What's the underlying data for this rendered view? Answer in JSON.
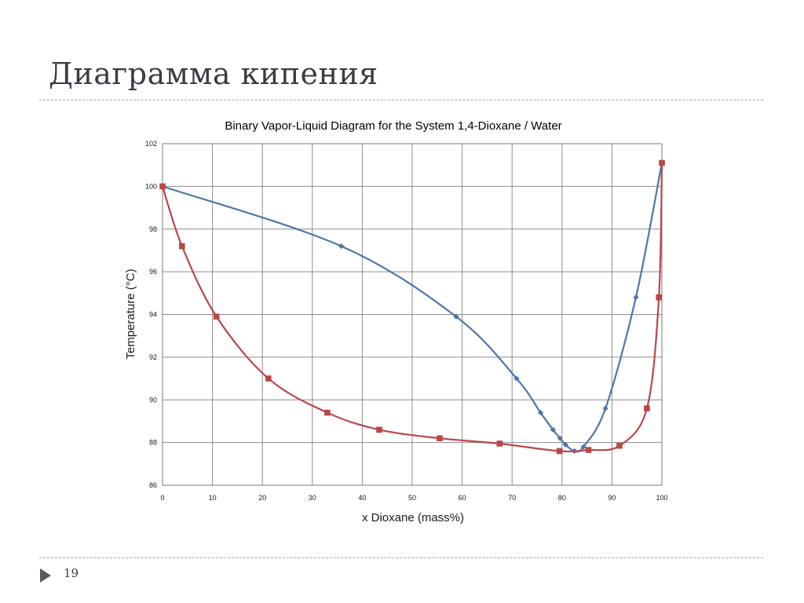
{
  "slide": {
    "title": "Диаграмма кипения",
    "page_number": "19"
  },
  "chart_data": {
    "type": "line",
    "title": "Binary Vapor-Liquid Diagram for the System 1,4-Dioxane / Water",
    "xlabel": "x Dioxane (mass%)",
    "ylabel": "Temperature (°C)",
    "xlim": [
      0,
      100
    ],
    "ylim": [
      86,
      102
    ],
    "x_ticks": [
      0,
      10,
      20,
      30,
      40,
      50,
      60,
      70,
      80,
      90,
      100
    ],
    "y_ticks": [
      86,
      88,
      90,
      92,
      94,
      96,
      98,
      100,
      102
    ],
    "grid": true,
    "legend": "none",
    "series": [
      {
        "marker": "diamond",
        "color": "#4f76a7",
        "points": [
          [
            0,
            100.0
          ],
          [
            35.8,
            97.2
          ],
          [
            58.8,
            93.9
          ],
          [
            70.9,
            91.0
          ],
          [
            75.7,
            89.4
          ],
          [
            78.2,
            88.6
          ],
          [
            79.6,
            88.2
          ],
          [
            80.7,
            87.9
          ],
          [
            82.5,
            87.6
          ],
          [
            84.3,
            87.8
          ],
          [
            88.7,
            89.6
          ],
          [
            94.8,
            94.8
          ],
          [
            100,
            101.1
          ]
        ]
      },
      {
        "marker": "square",
        "color": "#b8474a",
        "points": [
          [
            0,
            100.0
          ],
          [
            3.9,
            97.2
          ],
          [
            10.8,
            93.9
          ],
          [
            21.2,
            91.0
          ],
          [
            33.0,
            89.4
          ],
          [
            43.4,
            88.6
          ],
          [
            55.5,
            88.2
          ],
          [
            67.5,
            87.95
          ],
          [
            79.5,
            87.6
          ],
          [
            85.3,
            87.65
          ],
          [
            91.5,
            87.85
          ],
          [
            97.0,
            89.6
          ],
          [
            99.4,
            94.8
          ],
          [
            100,
            101.1
          ]
        ]
      }
    ]
  }
}
